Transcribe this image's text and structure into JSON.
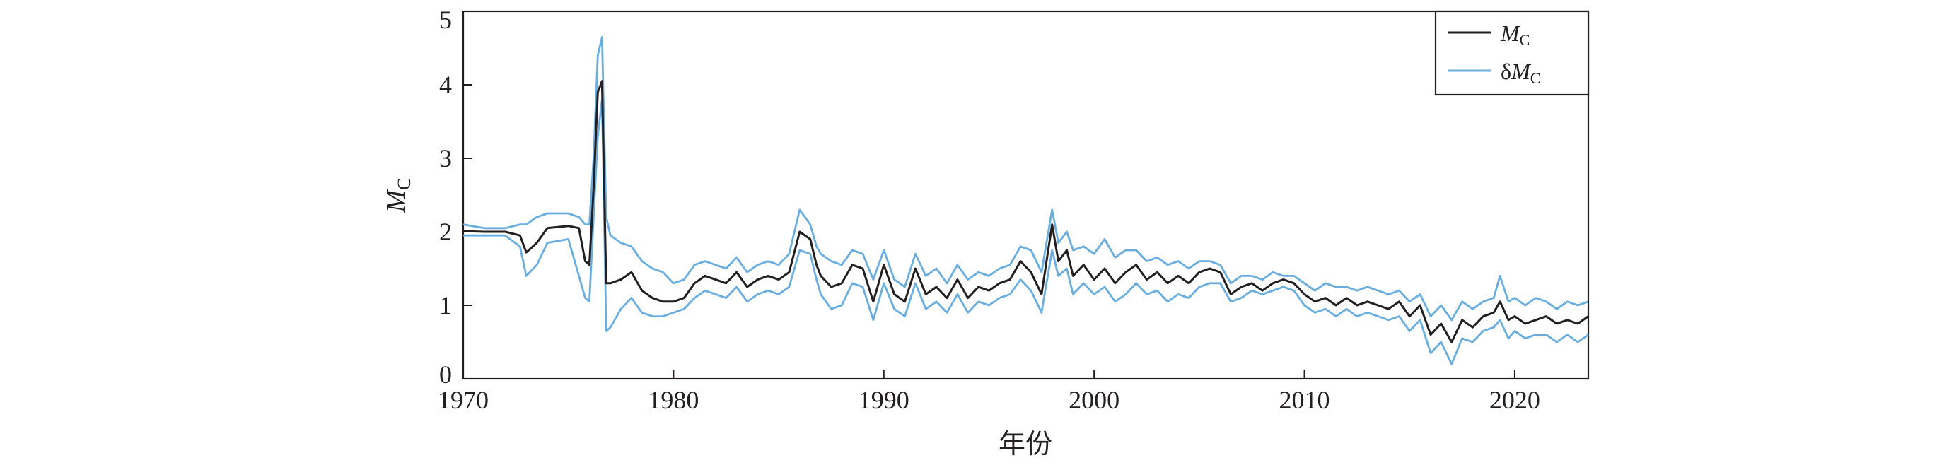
{
  "chart_data": {
    "type": "line",
    "title": "",
    "xlabel": "年份",
    "ylabel": {
      "main": "M",
      "sub": "C"
    },
    "xlim": [
      1970,
      2023.5
    ],
    "ylim": [
      0,
      5
    ],
    "x_ticks": [
      1970,
      1980,
      1990,
      2000,
      2010,
      2020
    ],
    "y_ticks": [
      0,
      1,
      2,
      3,
      4,
      5
    ],
    "grid": false,
    "legend": {
      "position": "top-right",
      "entries": [
        {
          "main": "M",
          "sub": "C",
          "color": "#231f20"
        },
        {
          "prefix": "δ",
          "main": "M",
          "sub": "C",
          "color": "#6aaee0"
        }
      ]
    },
    "series": [
      {
        "color": "#231f20",
        "x": [
          1970,
          1971,
          1972,
          1972.7,
          1973,
          1973.5,
          1974,
          1975,
          1975.5,
          1975.8,
          1976,
          1976.2,
          1976.4,
          1976.6,
          1976.8,
          1977,
          1977.5,
          1978,
          1978.5,
          1979,
          1979.5,
          1980,
          1980.5,
          1981,
          1981.5,
          1982,
          1982.5,
          1983,
          1983.5,
          1984,
          1984.5,
          1985,
          1985.5,
          1986,
          1986.5,
          1986.8,
          1987,
          1987.5,
          1988,
          1988.5,
          1989,
          1989.5,
          1990,
          1990.5,
          1991,
          1991.5,
          1992,
          1992.5,
          1993,
          1993.5,
          1994,
          1994.5,
          1995,
          1995.5,
          1996,
          1996.5,
          1997,
          1997.5,
          1998,
          1998.3,
          1998.7,
          1999,
          1999.5,
          2000,
          2000.5,
          2001,
          2001.5,
          2002,
          2002.5,
          2003,
          2003.5,
          2004,
          2004.5,
          2005,
          2005.5,
          2006,
          2006.5,
          2007,
          2007.5,
          2008,
          2008.5,
          2009,
          2009.5,
          2010,
          2010.5,
          2011,
          2011.5,
          2012,
          2012.5,
          2013,
          2013.5,
          2014,
          2014.5,
          2015,
          2015.5,
          2016,
          2016.5,
          2017,
          2017.5,
          2018,
          2018.5,
          2019,
          2019.3,
          2019.7,
          2020,
          2020.5,
          2021,
          2021.5,
          2022,
          2022.5,
          2023,
          2023.5
        ],
        "y": [
          2.01,
          2.0,
          2.0,
          1.95,
          1.72,
          1.85,
          2.05,
          2.08,
          2.05,
          1.6,
          1.55,
          2.6,
          3.9,
          4.05,
          1.3,
          1.3,
          1.35,
          1.45,
          1.2,
          1.1,
          1.05,
          1.05,
          1.1,
          1.3,
          1.4,
          1.35,
          1.3,
          1.45,
          1.25,
          1.35,
          1.4,
          1.35,
          1.45,
          2.0,
          1.9,
          1.55,
          1.4,
          1.25,
          1.3,
          1.55,
          1.5,
          1.05,
          1.55,
          1.15,
          1.05,
          1.5,
          1.15,
          1.25,
          1.1,
          1.35,
          1.1,
          1.25,
          1.2,
          1.3,
          1.35,
          1.6,
          1.45,
          1.15,
          2.1,
          1.6,
          1.75,
          1.4,
          1.55,
          1.35,
          1.5,
          1.3,
          1.45,
          1.55,
          1.35,
          1.45,
          1.3,
          1.4,
          1.3,
          1.45,
          1.5,
          1.45,
          1.15,
          1.25,
          1.3,
          1.2,
          1.3,
          1.35,
          1.3,
          1.15,
          1.05,
          1.1,
          1.0,
          1.1,
          1.0,
          1.05,
          1.0,
          0.95,
          1.05,
          0.85,
          1.0,
          0.6,
          0.75,
          0.5,
          0.8,
          0.7,
          0.85,
          0.9,
          1.05,
          0.8,
          0.85,
          0.75,
          0.8,
          0.85,
          0.75,
          0.8,
          0.75,
          0.85
        ]
      },
      {
        "color": "#6aaee0",
        "x": [
          1970,
          1971,
          1972,
          1972.7,
          1973,
          1973.5,
          1974,
          1975,
          1975.5,
          1975.8,
          1976,
          1976.2,
          1976.4,
          1976.6,
          1976.8,
          1977,
          1977.5,
          1978,
          1978.5,
          1979,
          1979.5,
          1980,
          1980.5,
          1981,
          1981.5,
          1982,
          1982.5,
          1983,
          1983.5,
          1984,
          1984.5,
          1985,
          1985.5,
          1986,
          1986.5,
          1986.8,
          1987,
          1987.5,
          1988,
          1988.5,
          1989,
          1989.5,
          1990,
          1990.5,
          1991,
          1991.5,
          1992,
          1992.5,
          1993,
          1993.5,
          1994,
          1994.5,
          1995,
          1995.5,
          1996,
          1996.5,
          1997,
          1997.5,
          1998,
          1998.3,
          1998.7,
          1999,
          1999.5,
          2000,
          2000.5,
          2001,
          2001.5,
          2002,
          2002.5,
          2003,
          2003.5,
          2004,
          2004.5,
          2005,
          2005.5,
          2006,
          2006.5,
          2007,
          2007.5,
          2008,
          2008.5,
          2009,
          2009.5,
          2010,
          2010.5,
          2011,
          2011.5,
          2012,
          2012.5,
          2013,
          2013.5,
          2014,
          2014.5,
          2015,
          2015.5,
          2016,
          2016.5,
          2017,
          2017.5,
          2018,
          2018.5,
          2019,
          2019.3,
          2019.7,
          2020,
          2020.5,
          2021,
          2021.5,
          2022,
          2022.5,
          2023,
          2023.5
        ],
        "y": [
          2.1,
          2.05,
          2.05,
          2.1,
          2.1,
          2.2,
          2.25,
          2.25,
          2.2,
          2.1,
          2.1,
          3.0,
          4.4,
          4.65,
          2.2,
          1.95,
          1.85,
          1.8,
          1.6,
          1.5,
          1.45,
          1.3,
          1.35,
          1.55,
          1.6,
          1.55,
          1.5,
          1.65,
          1.45,
          1.55,
          1.6,
          1.55,
          1.7,
          2.3,
          2.1,
          1.8,
          1.7,
          1.6,
          1.55,
          1.75,
          1.7,
          1.35,
          1.75,
          1.35,
          1.25,
          1.7,
          1.4,
          1.5,
          1.3,
          1.55,
          1.35,
          1.45,
          1.4,
          1.5,
          1.55,
          1.8,
          1.75,
          1.45,
          2.3,
          1.85,
          2.0,
          1.75,
          1.8,
          1.7,
          1.9,
          1.65,
          1.75,
          1.75,
          1.6,
          1.65,
          1.55,
          1.6,
          1.5,
          1.6,
          1.6,
          1.55,
          1.3,
          1.4,
          1.4,
          1.35,
          1.45,
          1.4,
          1.4,
          1.3,
          1.2,
          1.3,
          1.25,
          1.25,
          1.2,
          1.25,
          1.2,
          1.15,
          1.2,
          1.05,
          1.15,
          0.85,
          1.0,
          0.8,
          1.05,
          0.95,
          1.05,
          1.1,
          1.4,
          1.05,
          1.1,
          1.0,
          1.1,
          1.05,
          0.95,
          1.05,
          1.0,
          1.05
        ]
      },
      {
        "color": "#6aaee0",
        "x": [
          1970,
          1971,
          1972,
          1972.7,
          1973,
          1973.5,
          1974,
          1975,
          1975.5,
          1975.8,
          1976,
          1976.2,
          1976.4,
          1976.6,
          1976.8,
          1977,
          1977.5,
          1978,
          1978.5,
          1979,
          1979.5,
          1980,
          1980.5,
          1981,
          1981.5,
          1982,
          1982.5,
          1983,
          1983.5,
          1984,
          1984.5,
          1985,
          1985.5,
          1986,
          1986.5,
          1986.8,
          1987,
          1987.5,
          1988,
          1988.5,
          1989,
          1989.5,
          1990,
          1990.5,
          1991,
          1991.5,
          1992,
          1992.5,
          1993,
          1993.5,
          1994,
          1994.5,
          1995,
          1995.5,
          1996,
          1996.5,
          1997,
          1997.5,
          1998,
          1998.3,
          1998.7,
          1999,
          1999.5,
          2000,
          2000.5,
          2001,
          2001.5,
          2002,
          2002.5,
          2003,
          2003.5,
          2004,
          2004.5,
          2005,
          2005.5,
          2006,
          2006.5,
          2007,
          2007.5,
          2008,
          2008.5,
          2009,
          2009.5,
          2010,
          2010.5,
          2011,
          2011.5,
          2012,
          2012.5,
          2013,
          2013.5,
          2014,
          2014.5,
          2015,
          2015.5,
          2016,
          2016.5,
          2017,
          2017.5,
          2018,
          2018.5,
          2019,
          2019.3,
          2019.7,
          2020,
          2020.5,
          2021,
          2021.5,
          2022,
          2022.5,
          2023,
          2023.5
        ],
        "y": [
          1.95,
          1.95,
          1.95,
          1.8,
          1.4,
          1.55,
          1.85,
          1.9,
          1.4,
          1.1,
          1.05,
          2.2,
          3.3,
          3.8,
          0.65,
          0.7,
          0.95,
          1.1,
          0.9,
          0.85,
          0.85,
          0.9,
          0.95,
          1.1,
          1.2,
          1.15,
          1.1,
          1.25,
          1.05,
          1.15,
          1.2,
          1.15,
          1.25,
          1.75,
          1.7,
          1.35,
          1.15,
          0.95,
          1.0,
          1.3,
          1.25,
          0.8,
          1.3,
          0.95,
          0.85,
          1.3,
          0.95,
          1.05,
          0.9,
          1.15,
          0.9,
          1.05,
          1.0,
          1.1,
          1.15,
          1.35,
          1.2,
          0.9,
          1.75,
          1.4,
          1.5,
          1.15,
          1.3,
          1.15,
          1.25,
          1.05,
          1.15,
          1.3,
          1.15,
          1.2,
          1.05,
          1.15,
          1.1,
          1.25,
          1.3,
          1.3,
          1.05,
          1.1,
          1.2,
          1.15,
          1.2,
          1.25,
          1.2,
          1.0,
          0.9,
          0.95,
          0.85,
          0.95,
          0.85,
          0.9,
          0.85,
          0.8,
          0.85,
          0.65,
          0.8,
          0.35,
          0.5,
          0.2,
          0.55,
          0.5,
          0.65,
          0.7,
          0.8,
          0.55,
          0.65,
          0.55,
          0.6,
          0.6,
          0.5,
          0.6,
          0.5,
          0.6
        ]
      }
    ]
  }
}
